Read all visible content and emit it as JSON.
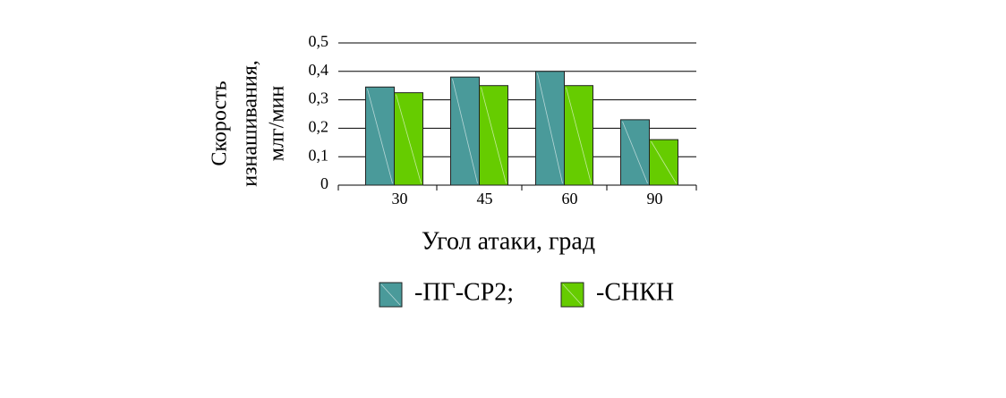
{
  "chart_data": {
    "type": "bar",
    "y_label": [
      "Скорость",
      "изнашивания,",
      "млг/мин"
    ],
    "x_label": "Угол атаки, град",
    "categories": [
      "30",
      "45",
      "60",
      "90"
    ],
    "series": [
      {
        "name": "-ПГ-СР2;",
        "color": "#4a9a9a",
        "values": [
          0.345,
          0.38,
          0.4,
          0.23
        ]
      },
      {
        "name": "-СНКН",
        "color": "#66cc00",
        "values": [
          0.325,
          0.35,
          0.35,
          0.16
        ]
      }
    ],
    "ylim": [
      0,
      0.5
    ],
    "yticks": [
      0,
      {
        "value": 0.1,
        "label": "0,1"
      },
      {
        "value": 0.2,
        "label": "0,2"
      },
      {
        "value": 0.3,
        "label": "0,3"
      },
      {
        "value": 0.4,
        "label": "0,4"
      },
      {
        "value": 0.5,
        "label": "0,5"
      }
    ],
    "grid": true
  }
}
